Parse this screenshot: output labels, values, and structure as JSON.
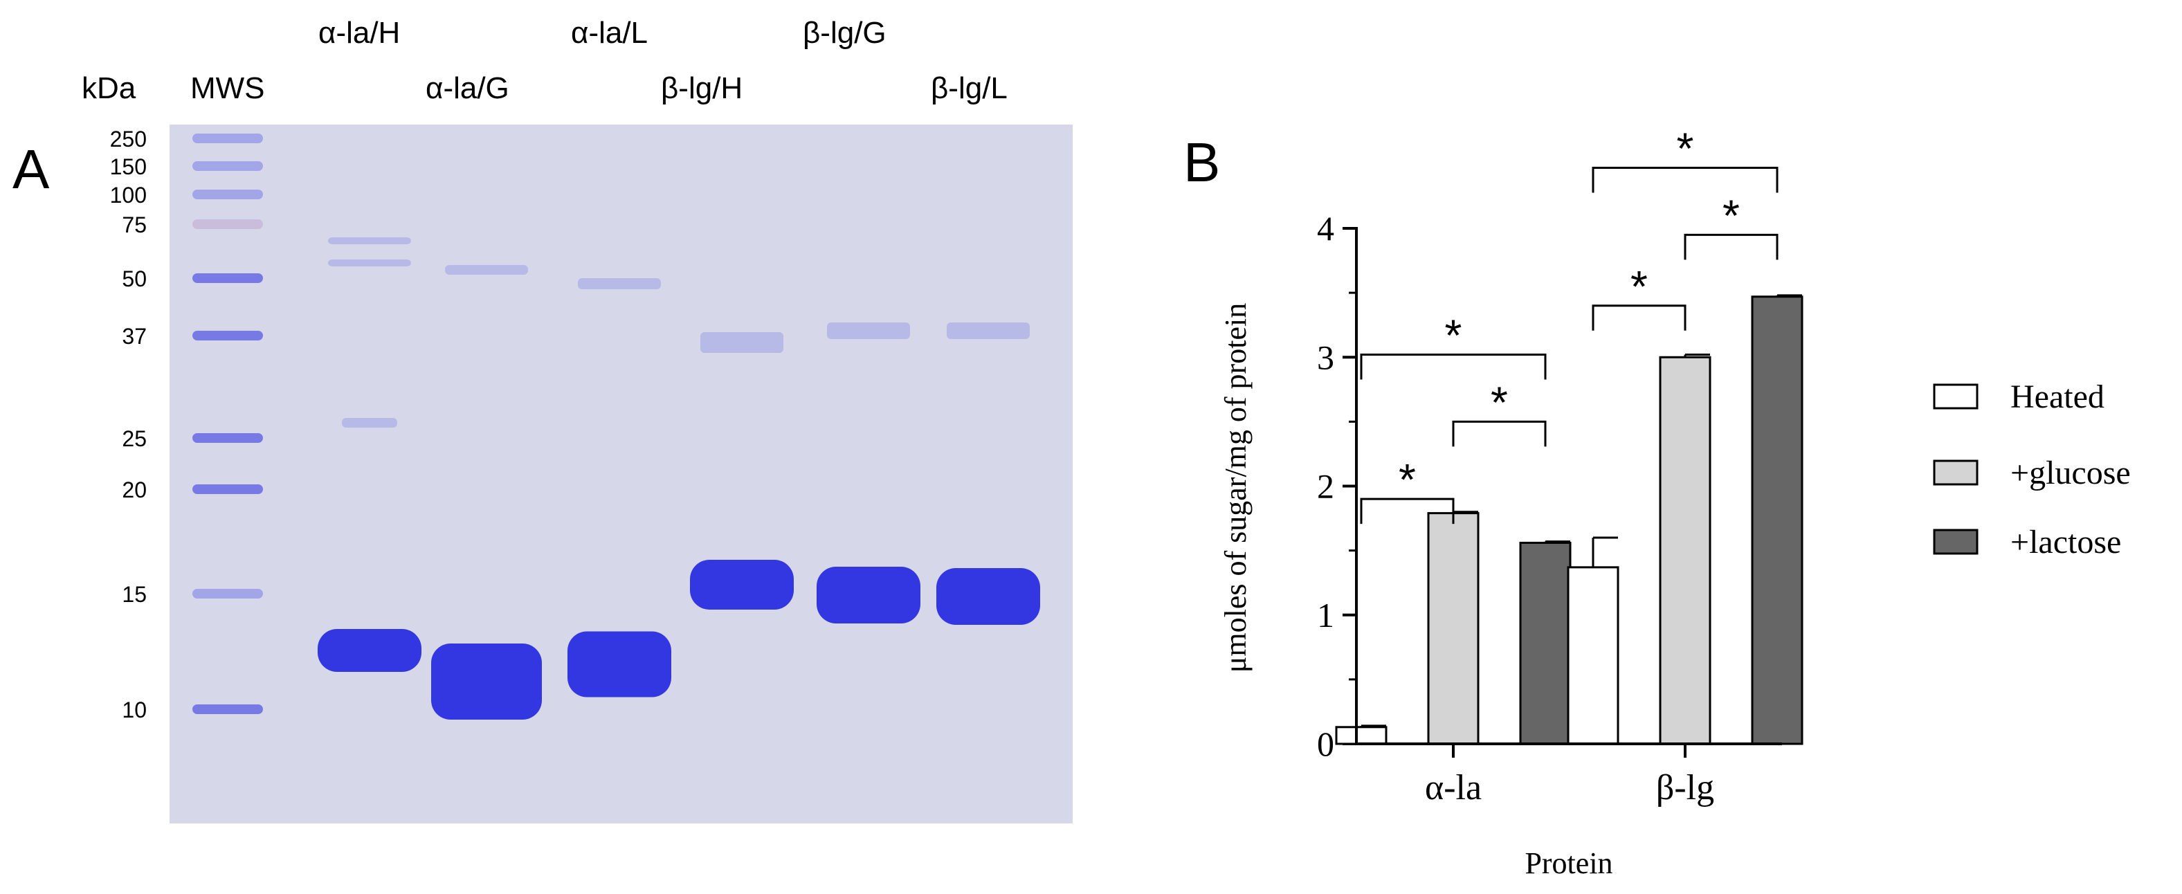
{
  "panel_a": {
    "panel_label": "A",
    "kda_label": "kDa",
    "lanes": [
      "MWS",
      "α-la/H",
      "α-la/G",
      "α-la/L",
      "β-lg/H",
      "β-lg/G",
      "β-lg/L"
    ],
    "marker_sizes": [
      "250",
      "150",
      "100",
      "75",
      "50",
      "37",
      "25",
      "20",
      "15",
      "10"
    ],
    "gel_bg_color": "#d6d8ea",
    "band_color": "#2a2ee0"
  },
  "chart_data": {
    "type": "bar",
    "panel_label": "B",
    "categories": [
      "α-la",
      "β-lg"
    ],
    "series": [
      {
        "name": "Heated",
        "values": [
          0.13,
          1.37
        ],
        "errors": [
          0.01,
          0.23
        ],
        "color": "#ffffff"
      },
      {
        "name": "+glucose",
        "values": [
          1.79,
          3.0
        ],
        "errors": [
          0.01,
          0.02
        ],
        "color": "#d4d4d4"
      },
      {
        "name": "+lactose",
        "values": [
          1.56,
          3.47
        ],
        "errors": [
          0.01,
          0.01
        ],
        "color": "#666666"
      }
    ],
    "xlabel": "Protein",
    "ylabel": "μmoles of sugar/mg of protein",
    "ylim": [
      0,
      4
    ],
    "yticks": [
      "0",
      "1",
      "2",
      "3",
      "4"
    ],
    "legend_position": "right",
    "significance_symbol": "*"
  }
}
